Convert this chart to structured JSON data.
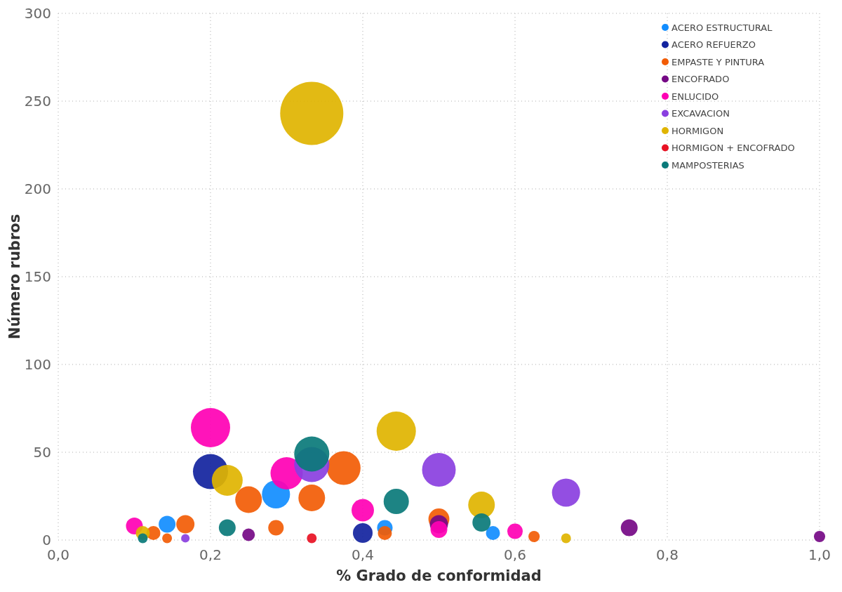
{
  "chart_data": {
    "type": "bubble",
    "xlabel": "% Grado de conformidad",
    "ylabel": "Número rubros",
    "xlim": [
      0,
      1
    ],
    "xticks": [
      {
        "value": 0,
        "label": "0,0"
      },
      {
        "value": 0.2,
        "label": "0,2"
      },
      {
        "value": 0.4,
        "label": "0,4"
      },
      {
        "value": 0.6,
        "label": "0,6"
      },
      {
        "value": 0.8,
        "label": "0,8"
      },
      {
        "value": 1,
        "label": "1,0"
      }
    ],
    "ylim": [
      0,
      300
    ],
    "yticks": [
      0,
      50,
      100,
      150,
      200,
      250,
      300
    ],
    "grid": true,
    "legend": "top right",
    "series": [
      {
        "name": "ACERO ESTRUCTURAL",
        "color": "#118dff",
        "x": [
          0.143,
          0.286,
          0.429,
          0.571
        ],
        "values": [
          9,
          26,
          7,
          4
        ],
        "sizes": [
          0.071,
          0.198,
          0.06,
          0.049
        ]
      },
      {
        "name": "ACERO REFUERZO",
        "color": "#12239e",
        "x": [
          0.2,
          0.4
        ],
        "values": [
          39,
          4
        ],
        "sizes": [
          0.309,
          0.097
        ]
      },
      {
        "name": "EMPASTE Y PINTURA",
        "color": "#f25c05",
        "x": [
          0.125,
          0.143,
          0.167,
          0.25,
          0.286,
          0.333,
          0.375,
          0.429,
          0.5,
          0.625
        ],
        "values": [
          4,
          1,
          9,
          23,
          7,
          24,
          41,
          4,
          12,
          2
        ],
        "sizes": [
          0.049,
          0.024,
          0.083,
          0.178,
          0.06,
          0.178,
          0.284,
          0.049,
          0.11,
          0.032
        ]
      },
      {
        "name": "ENCOFRADO",
        "color": "#750985",
        "x": [
          0.25,
          0.5,
          0.75,
          1.0
        ],
        "values": [
          3,
          9,
          7,
          2
        ],
        "sizes": [
          0.04,
          0.083,
          0.071,
          0.032
        ]
      },
      {
        "name": "ENLUCIDO",
        "color": "#ff00b4",
        "x": [
          0.1,
          0.2,
          0.3,
          0.4,
          0.5,
          0.6
        ],
        "values": [
          8,
          64,
          38,
          17,
          6,
          5
        ],
        "sizes": [
          0.071,
          0.387,
          0.261,
          0.126,
          0.071,
          0.06
        ]
      },
      {
        "name": "EXCAVACION",
        "color": "#8a3fe0",
        "x": [
          0.167,
          0.333,
          0.5,
          0.667
        ],
        "values": [
          1,
          43,
          40,
          27
        ],
        "sizes": [
          0.018,
          0.309,
          0.284,
          0.198
        ]
      },
      {
        "name": "HORMIGON",
        "color": "#e0b400",
        "x": [
          0.111,
          0.222,
          0.333,
          0.444,
          0.556,
          0.667
        ],
        "values": [
          4,
          34,
          243,
          62,
          20,
          1
        ],
        "sizes": [
          0.049,
          0.239,
          1,
          0.387,
          0.178,
          0.024
        ]
      },
      {
        "name": "HORMIGON + ENCOFRADO",
        "color": "#e81123",
        "x": [
          0.333
        ],
        "values": [
          1
        ],
        "sizes": [
          0.024
        ]
      },
      {
        "name": "MAMPOSTERIAS",
        "color": "#0a7a7a",
        "x": [
          0.111,
          0.222,
          0.333,
          0.444,
          0.556
        ],
        "values": [
          1,
          7,
          49,
          22,
          10
        ],
        "sizes": [
          0.024,
          0.071,
          0.309,
          0.16,
          0.083
        ]
      }
    ]
  }
}
